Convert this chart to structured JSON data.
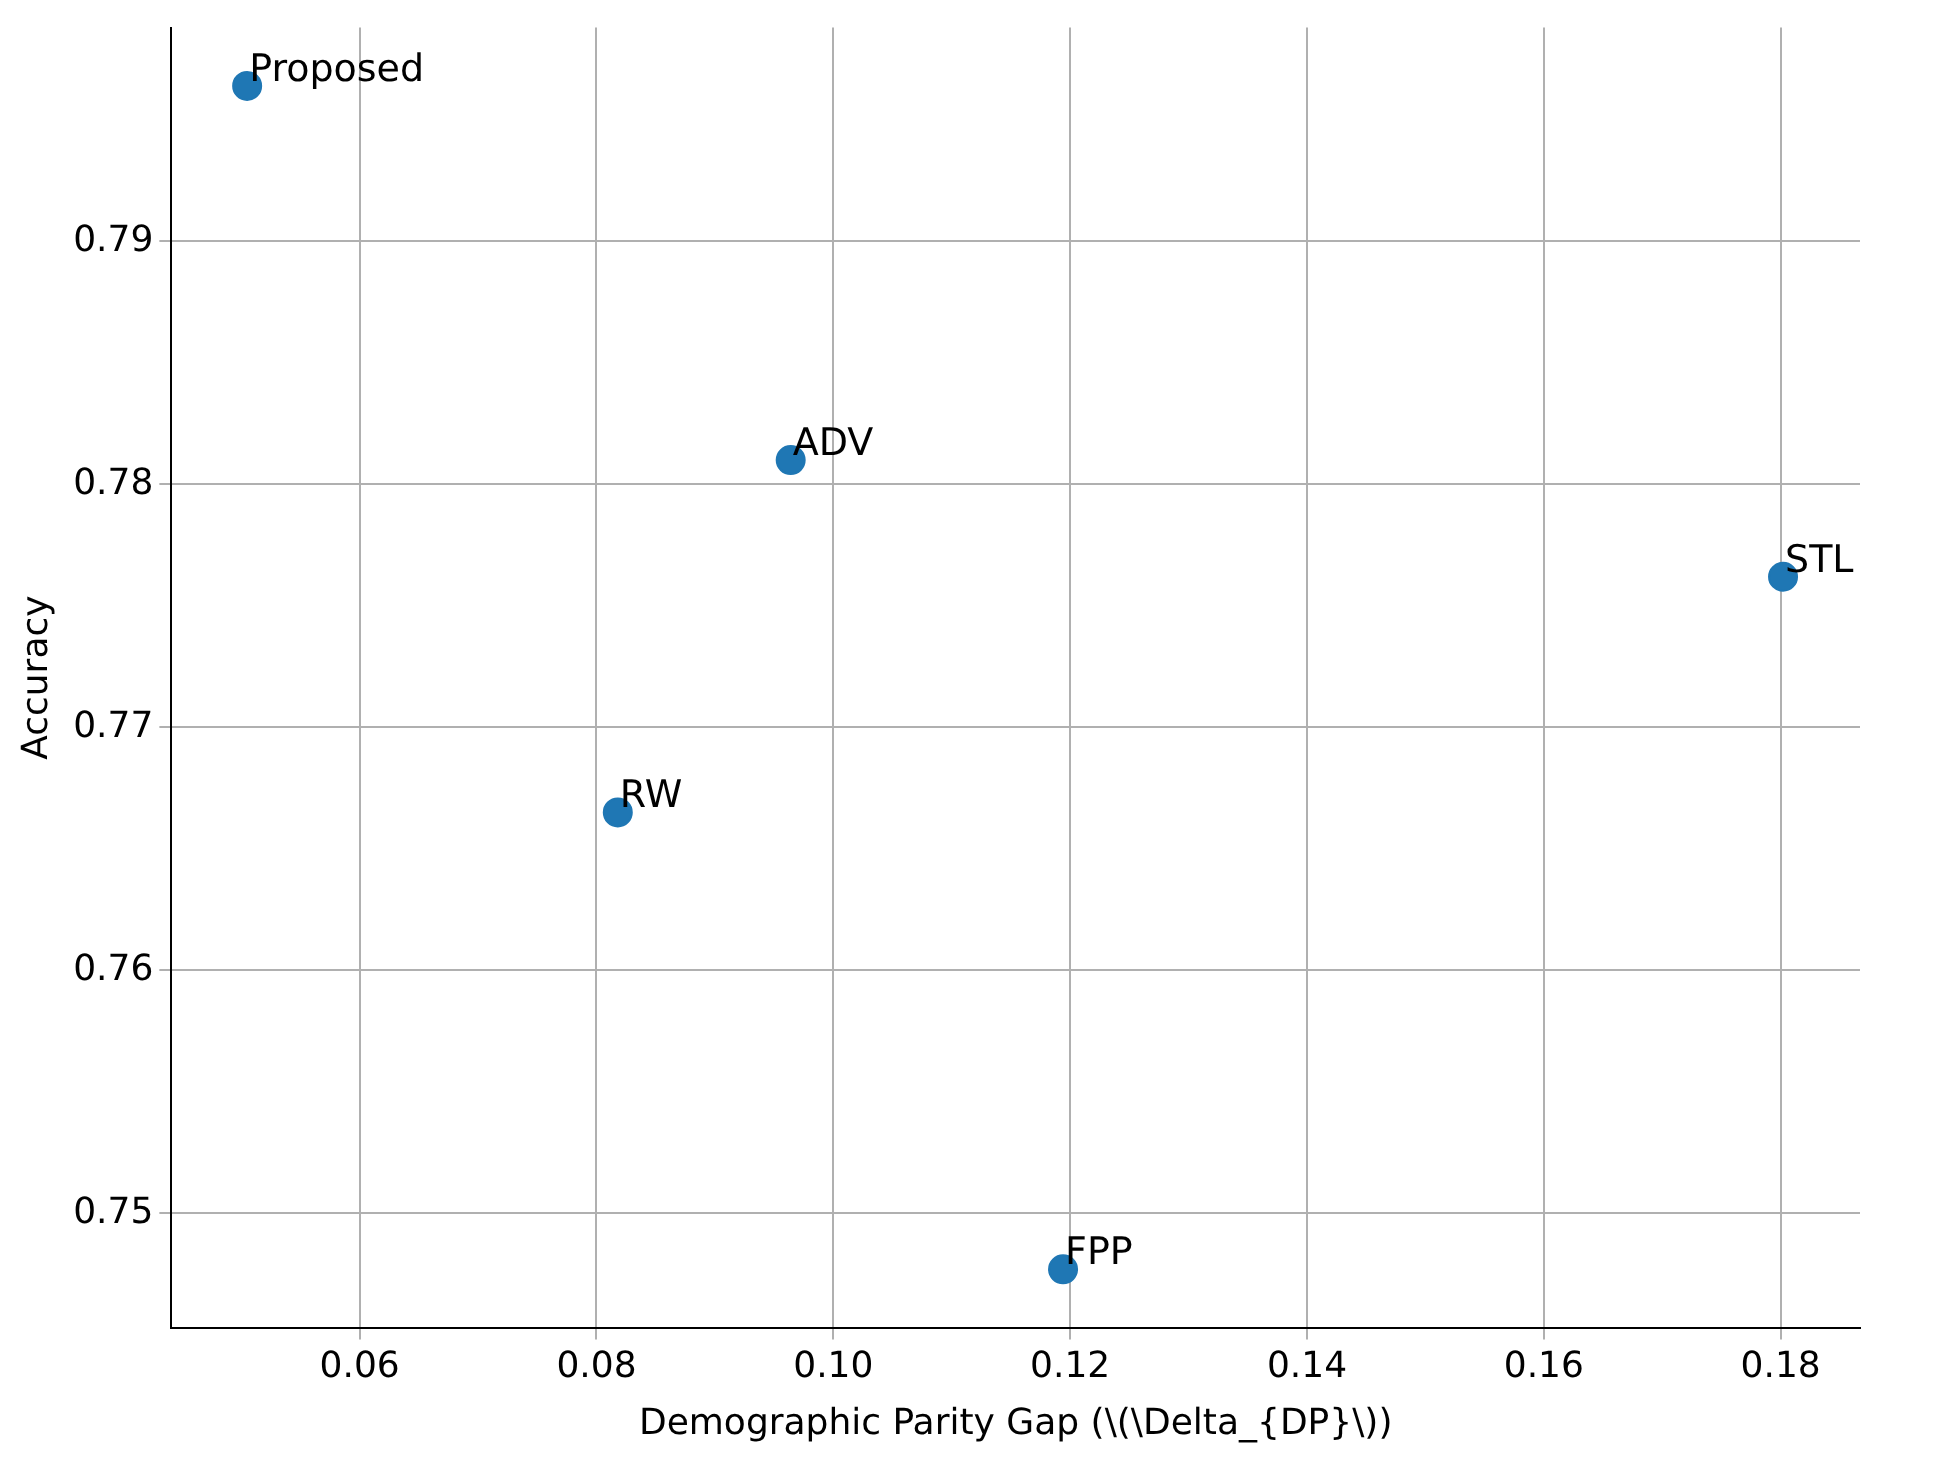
{
  "chart_data": {
    "type": "scatter",
    "xlabel": "Demographic Parity Gap (\\(\\Delta_{DP}\\))",
    "ylabel": "Accuracy",
    "x": [
      0.0505,
      0.0964,
      0.1802,
      0.0818,
      0.1194
    ],
    "values": [
      0.7964,
      0.781,
      0.7762,
      0.7665,
      0.7477
    ],
    "color": "#1f77b4",
    "marker": "circle",
    "grid": true,
    "legend": false,
    "xlim": [
      0.0441,
      0.1867
    ],
    "xticks": [
      {
        "value": 0.06,
        "label": "0.06"
      },
      {
        "value": 0.08,
        "label": "0.08"
      },
      {
        "value": 0.1,
        "label": "0.10"
      },
      {
        "value": 0.12,
        "label": "0.12"
      },
      {
        "value": 0.14,
        "label": "0.14"
      },
      {
        "value": 0.16,
        "label": "0.16"
      },
      {
        "value": 0.18,
        "label": "0.18"
      }
    ],
    "ylim": [
      0.7453,
      0.7988
    ],
    "yticks": [
      {
        "value": 0.75,
        "label": "0.75"
      },
      {
        "value": 0.76,
        "label": "0.76"
      },
      {
        "value": 0.77,
        "label": "0.77"
      },
      {
        "value": 0.78,
        "label": "0.78"
      },
      {
        "value": 0.79,
        "label": "0.79"
      }
    ],
    "annotations": [
      {
        "text": "Proposed",
        "x": 0.0505,
        "y": 0.7964
      },
      {
        "text": "ADV",
        "x": 0.0964,
        "y": 0.781
      },
      {
        "text": "STL",
        "x": 0.1802,
        "y": 0.7762
      },
      {
        "text": "RW",
        "x": 0.0818,
        "y": 0.7665
      },
      {
        "text": "FPP",
        "x": 0.1194,
        "y": 0.7477
      }
    ]
  }
}
